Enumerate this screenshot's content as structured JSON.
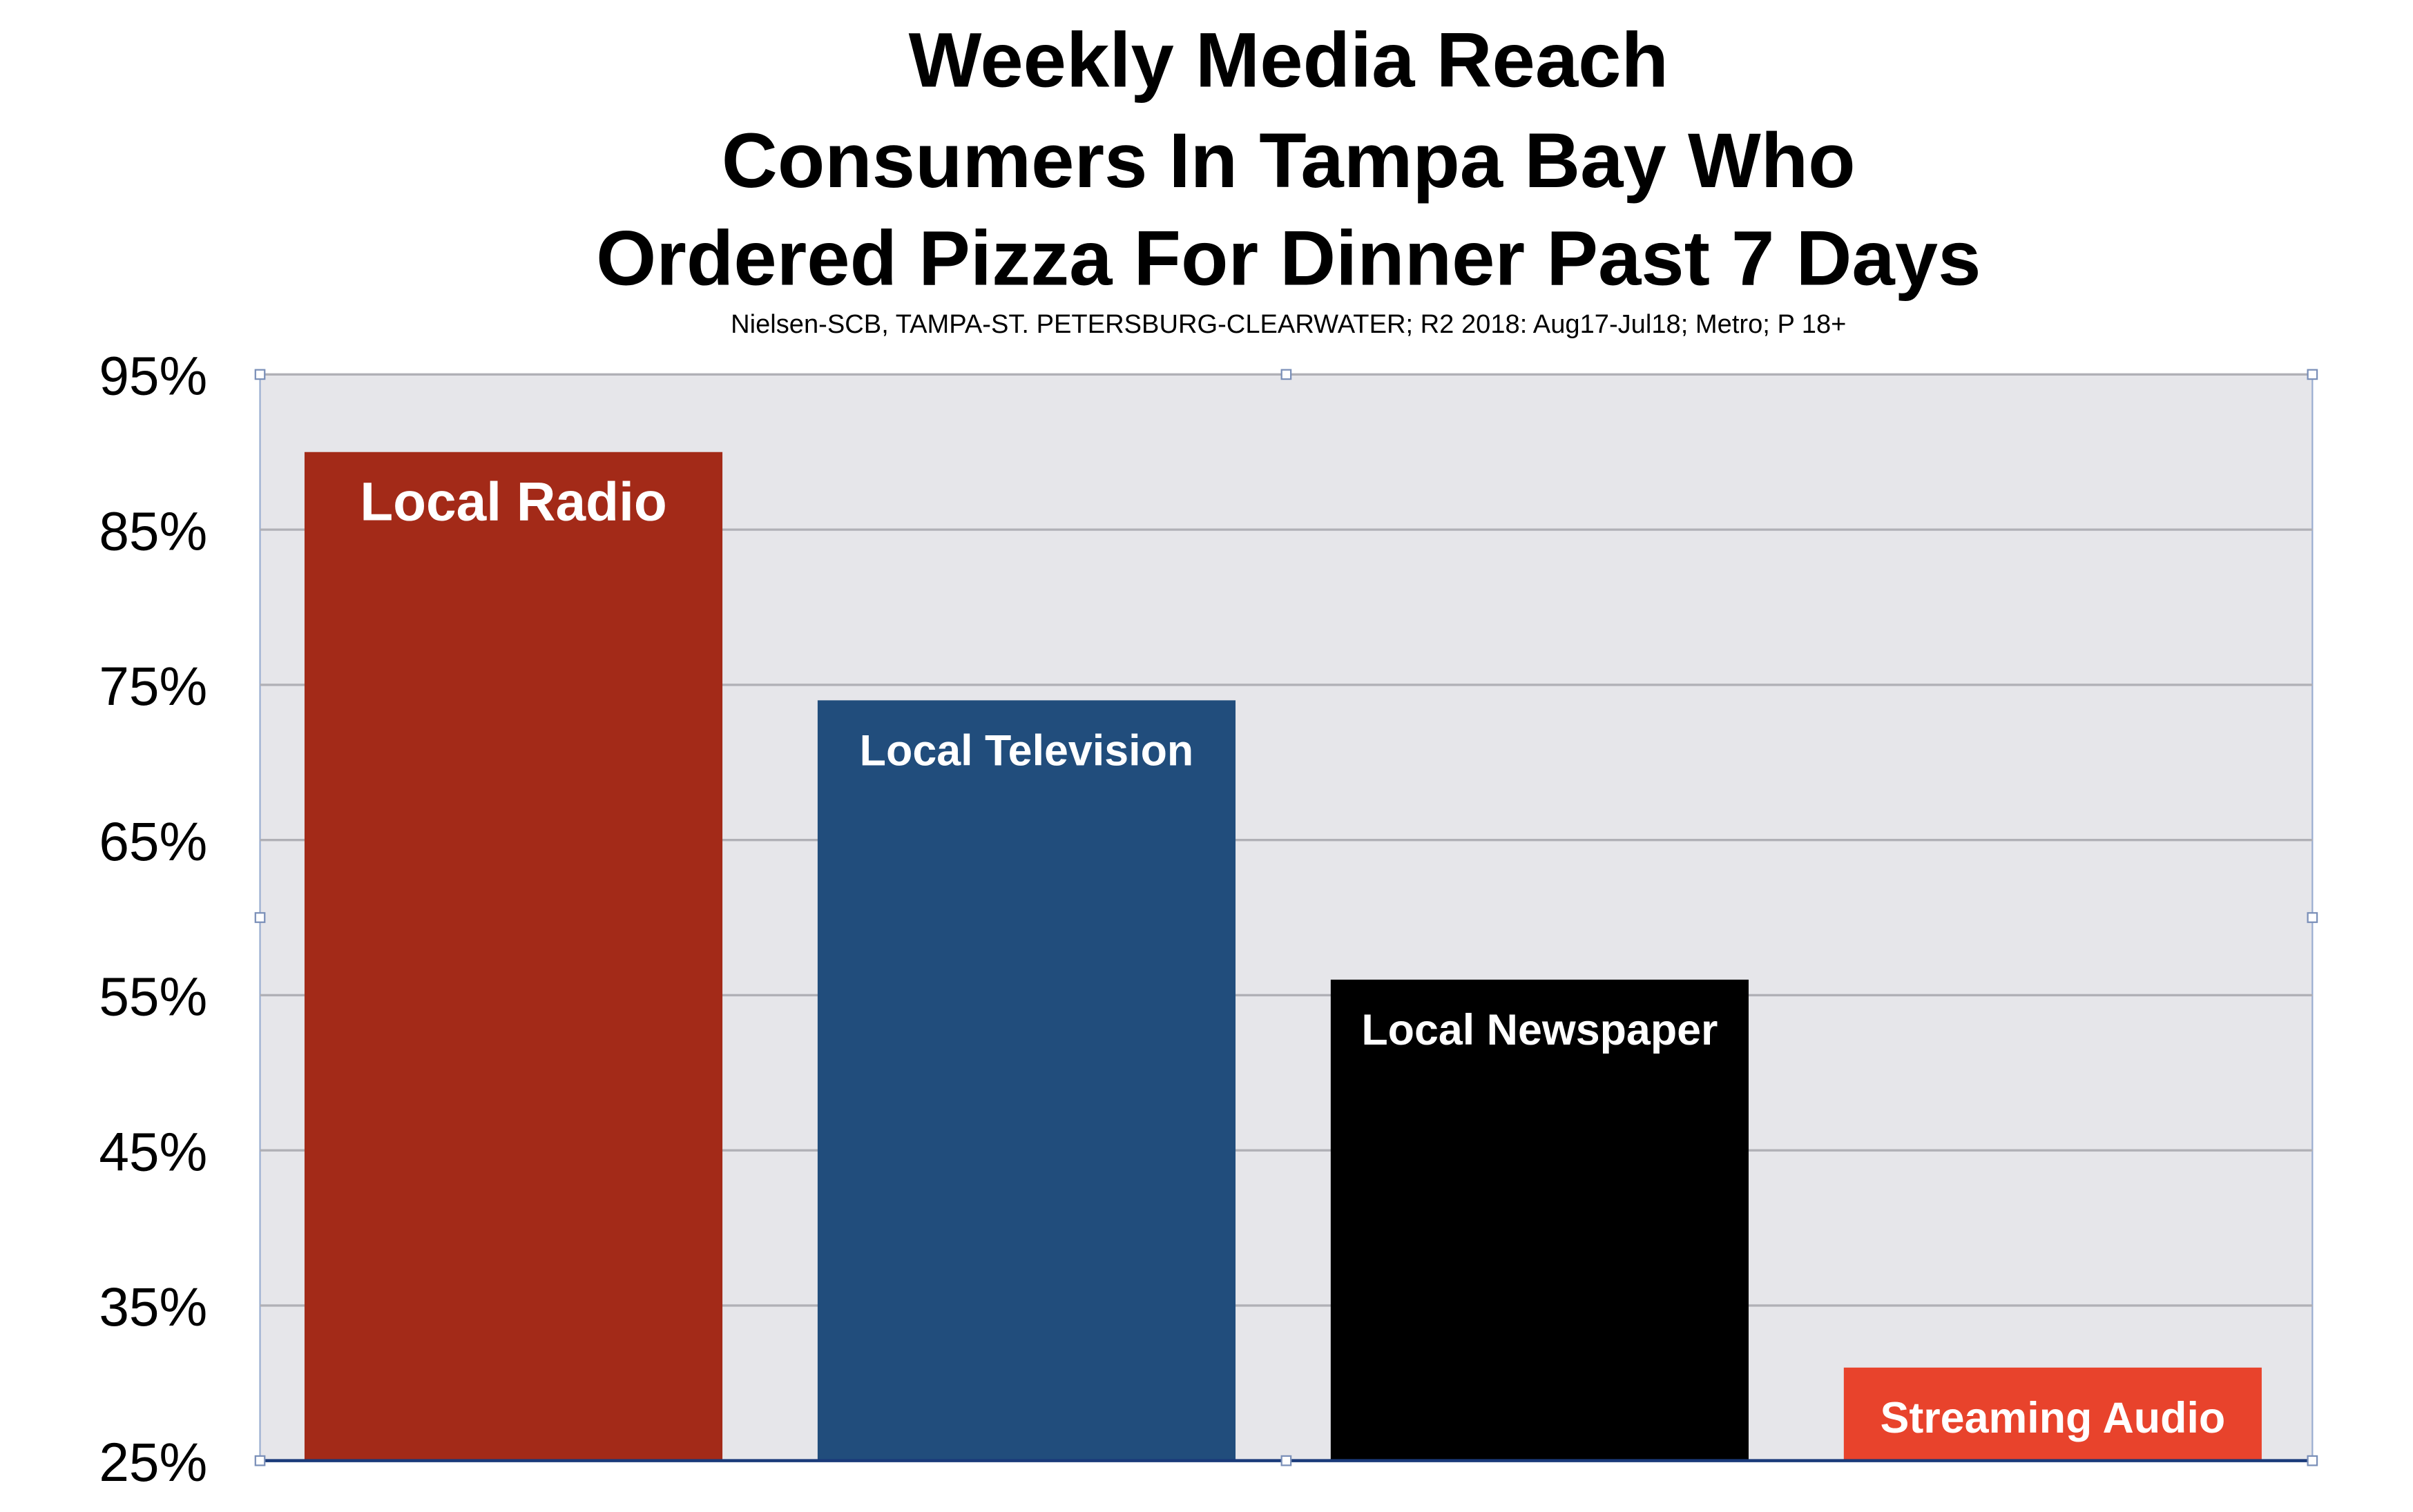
{
  "chart_data": {
    "type": "bar",
    "title_lines": [
      "Weekly Media Reach",
      "Consumers In Tampa Bay Who",
      "Ordered Pizza For Dinner Past 7 Days"
    ],
    "subtitle": "Nielsen-SCB, TAMPA-ST. PETERSBURG-CLEARWATER; R2 2018: Aug17-Jul18; Metro; P 18+",
    "categories": [
      "Local Radio",
      "Local Television",
      "Local Newspaper",
      "Streaming Audio"
    ],
    "values": [
      90,
      74,
      56,
      31
    ],
    "bar_colors": [
      "#a32a18",
      "#214d7c",
      "#000000",
      "#e8432c"
    ],
    "ylim": [
      25,
      95
    ],
    "yticks": [
      95,
      85,
      75,
      65,
      55,
      45,
      35,
      25
    ],
    "ytick_labels": [
      "95%",
      "85%",
      "75%",
      "65%",
      "55%",
      "45%",
      "35%",
      "25%"
    ],
    "grid": true,
    "plot_background": "#e6e6ea",
    "gridline_color": "#b0b0b6",
    "baseline_color": "#1a3a7a",
    "label_color": "#ffffff"
  }
}
